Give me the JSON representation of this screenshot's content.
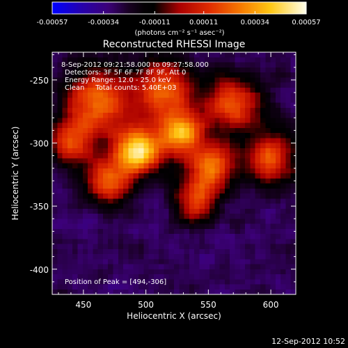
{
  "chart_data": {
    "type": "heatmap",
    "title": "Reconstructed RHESSI Image",
    "xlabel": "Heliocentric X (arcsec)",
    "ylabel": "Heliocentric Y (arcsec)",
    "xlim": [
      425,
      620
    ],
    "ylim": [
      -420,
      -228
    ],
    "x_ticks": [
      "450",
      "500",
      "550",
      "600"
    ],
    "y_ticks": [
      "-250",
      "-300",
      "-350",
      "-400"
    ],
    "colorbar": {
      "min": -0.00057,
      "max": 0.00057,
      "tick_labels": [
        "-0.00057",
        "-0.00034",
        "-0.00011",
        "0.00011",
        "0.00034",
        "0.00057"
      ],
      "unit_label": "(photons cm⁻² s⁻¹ asec⁻²)"
    },
    "info_lines": [
      "8-Sep-2012 09:21:58.000 to 09:27:58.000",
      "Detectors: 3F 5F 6F 7F 8F 9F, Att 0",
      "Energy Range: 12.0 - 25.0 keV",
      "Clean     Total counts: 5.40E+03"
    ],
    "peak_label": "Position of Peak = [494,-306]",
    "peak": {
      "x": 494,
      "y": -306
    },
    "date_stamp": "12-Sep-2012 10:52",
    "sources": [
      {
        "x": 494,
        "y": -306,
        "sigma": 13,
        "amp": 0.00057
      },
      {
        "x": 528,
        "y": -292,
        "sigma": 12,
        "amp": 0.0004
      },
      {
        "x": 462,
        "y": -268,
        "sigma": 18,
        "amp": 0.00033
      },
      {
        "x": 552,
        "y": -318,
        "sigma": 13,
        "amp": 0.00032
      },
      {
        "x": 515,
        "y": -258,
        "sigma": 16,
        "amp": 0.0003
      },
      {
        "x": 570,
        "y": -268,
        "sigma": 15,
        "amp": 0.00026
      },
      {
        "x": 600,
        "y": -312,
        "sigma": 15,
        "amp": 0.00022
      },
      {
        "x": 470,
        "y": -330,
        "sigma": 13,
        "amp": 0.00025
      },
      {
        "x": 540,
        "y": -345,
        "sigma": 12,
        "amp": 0.00018
      },
      {
        "x": 440,
        "y": -300,
        "sigma": 12,
        "amp": 0.0002
      }
    ],
    "background": -0.00028
  }
}
